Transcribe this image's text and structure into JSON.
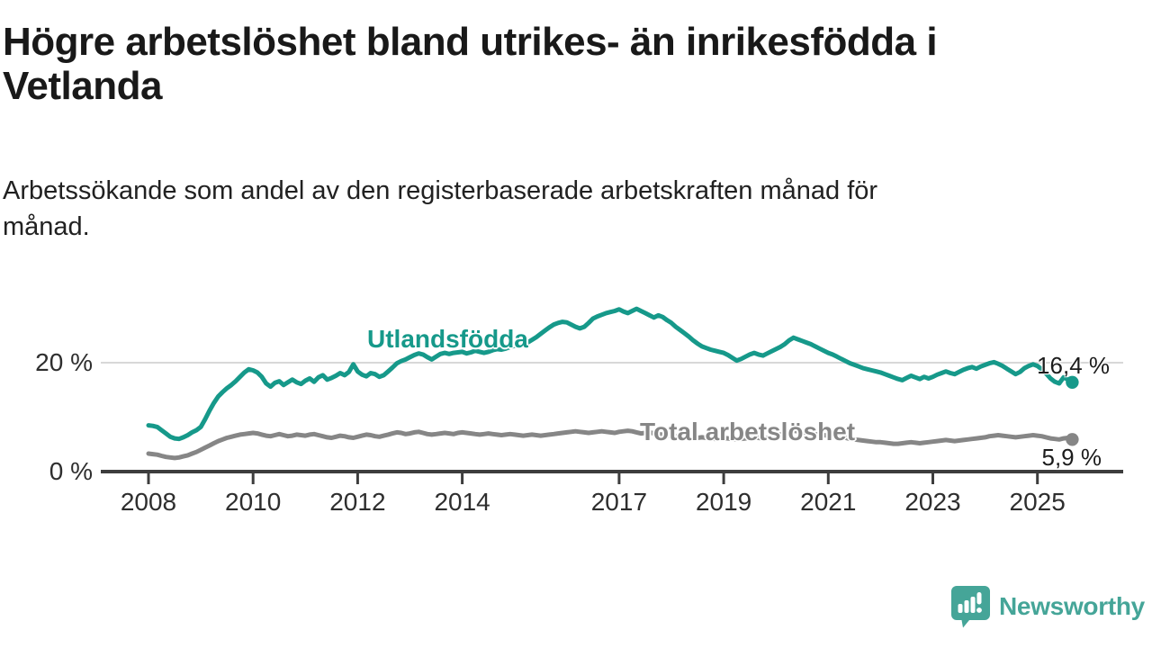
{
  "header": {
    "title_lines": [
      "Högre arbetslöshet bland utrikes- än inrikesfödda i",
      "Vetlanda"
    ],
    "subtitle_lines": [
      "Arbetssökande som andel av den registerbaserade arbetskraften månad för",
      "månad."
    ]
  },
  "chart_data": {
    "type": "line",
    "title": "Högre arbetslöshet bland utrikes- än inrikesfödda i Vetlanda",
    "subtitle": "Arbetssökande som andel av den registerbaserade arbetskraften månad för månad.",
    "x_unit": "month",
    "x_start": "2008-01",
    "x_end": "2025-09",
    "x_tick_years": [
      2008,
      2010,
      2012,
      2014,
      2017,
      2019,
      2021,
      2023,
      2025
    ],
    "x_tick_labels": [
      "2008",
      "2010",
      "2012",
      "2014",
      "2017",
      "2019",
      "2021",
      "2023",
      "2025"
    ],
    "y_axis": {
      "unit": "%",
      "min": 0,
      "max": 32,
      "grid": "horizontal-only",
      "ticks": [
        {
          "value": 0,
          "label": "0 %"
        },
        {
          "value": 20,
          "label": "20 %"
        }
      ]
    },
    "axis_color": "#3d3d3d",
    "grid_color": "#d8d8d8",
    "series": [
      {
        "name": "Utlandsfödda",
        "color": "#16998a",
        "end_value": 16.4,
        "end_label": "16,4 %",
        "values": [
          8.5,
          8.4,
          8.2,
          7.6,
          7.0,
          6.4,
          6.1,
          6.0,
          6.3,
          6.7,
          7.2,
          7.6,
          8.2,
          9.6,
          11.2,
          12.6,
          13.8,
          14.6,
          15.3,
          15.9,
          16.6,
          17.4,
          18.2,
          18.8,
          18.6,
          18.2,
          17.4,
          16.2,
          15.6,
          16.3,
          16.6,
          15.9,
          16.4,
          16.9,
          16.4,
          16.1,
          16.7,
          17.1,
          16.5,
          17.3,
          17.7,
          16.9,
          17.2,
          17.6,
          18.1,
          17.7,
          18.3,
          19.7,
          18.4,
          17.8,
          17.5,
          18.1,
          17.9,
          17.4,
          17.7,
          18.4,
          19.1,
          19.9,
          20.3,
          20.6,
          21.0,
          21.4,
          21.7,
          21.5,
          21.0,
          20.6,
          21.1,
          21.6,
          21.8,
          21.6,
          21.8,
          21.9,
          22.0,
          21.7,
          21.9,
          22.2,
          22.0,
          21.8,
          22.0,
          22.3,
          22.5,
          22.4,
          22.6,
          22.9,
          23.1,
          23.4,
          23.2,
          23.7,
          24.2,
          24.7,
          25.3,
          25.9,
          26.5,
          27.0,
          27.3,
          27.5,
          27.4,
          27.0,
          26.6,
          26.3,
          26.6,
          27.3,
          28.1,
          28.5,
          28.8,
          29.1,
          29.3,
          29.5,
          29.8,
          29.4,
          29.1,
          29.5,
          29.9,
          29.5,
          29.1,
          28.7,
          28.3,
          28.7,
          28.4,
          27.8,
          27.3,
          26.6,
          26.0,
          25.4,
          24.8,
          24.1,
          23.5,
          23.0,
          22.7,
          22.4,
          22.2,
          22.0,
          21.8,
          21.4,
          20.9,
          20.4,
          20.7,
          21.1,
          21.5,
          21.8,
          21.5,
          21.3,
          21.7,
          22.1,
          22.5,
          22.9,
          23.4,
          24.1,
          24.6,
          24.3,
          24.0,
          23.7,
          23.4,
          23.0,
          22.6,
          22.2,
          21.8,
          21.5,
          21.1,
          20.7,
          20.3,
          19.9,
          19.6,
          19.3,
          19.0,
          18.8,
          18.6,
          18.4,
          18.2,
          17.9,
          17.6,
          17.3,
          17.0,
          16.8,
          17.2,
          17.6,
          17.3,
          17.0,
          17.4,
          17.1,
          17.4,
          17.8,
          18.1,
          18.4,
          18.1,
          17.9,
          18.3,
          18.7,
          19.0,
          19.2,
          18.9,
          19.3,
          19.6,
          19.9,
          20.1,
          19.8,
          19.4,
          18.9,
          18.4,
          17.9,
          18.3,
          19.0,
          19.4,
          19.7,
          19.4,
          18.8,
          18.0,
          17.1,
          16.5,
          16.2,
          17.3,
          16.9,
          16.4
        ]
      },
      {
        "name": "Total arbetslöshet",
        "color": "#868686",
        "end_value": 5.9,
        "end_label": "5,9 %",
        "values": [
          3.3,
          3.2,
          3.1,
          2.9,
          2.7,
          2.6,
          2.5,
          2.6,
          2.8,
          3.0,
          3.3,
          3.6,
          4.0,
          4.4,
          4.8,
          5.2,
          5.6,
          5.9,
          6.2,
          6.4,
          6.6,
          6.8,
          6.9,
          7.0,
          7.1,
          7.0,
          6.8,
          6.6,
          6.5,
          6.7,
          6.9,
          6.7,
          6.5,
          6.6,
          6.8,
          6.7,
          6.6,
          6.8,
          6.9,
          6.7,
          6.5,
          6.3,
          6.2,
          6.4,
          6.6,
          6.5,
          6.3,
          6.2,
          6.4,
          6.6,
          6.8,
          6.7,
          6.5,
          6.4,
          6.6,
          6.8,
          7.0,
          7.2,
          7.1,
          6.9,
          7.0,
          7.2,
          7.3,
          7.1,
          6.9,
          6.8,
          6.9,
          7.0,
          7.1,
          7.0,
          6.9,
          7.1,
          7.2,
          7.1,
          7.0,
          6.9,
          6.8,
          6.9,
          7.0,
          6.9,
          6.8,
          6.7,
          6.8,
          6.9,
          6.8,
          6.7,
          6.6,
          6.7,
          6.8,
          6.7,
          6.6,
          6.7,
          6.8,
          6.9,
          7.0,
          7.1,
          7.2,
          7.3,
          7.4,
          7.3,
          7.2,
          7.1,
          7.2,
          7.3,
          7.4,
          7.3,
          7.2,
          7.1,
          7.3,
          7.4,
          7.5,
          7.4,
          7.2,
          7.0,
          7.1,
          7.2,
          7.0,
          6.9,
          6.8,
          6.7,
          6.6,
          6.5,
          6.4,
          6.3,
          6.2,
          6.1,
          6.2,
          6.3,
          6.2,
          6.1,
          6.0,
          6.1,
          6.2,
          6.1,
          6.0,
          5.9,
          6.0,
          6.1,
          6.2,
          6.3,
          6.2,
          6.1,
          6.2,
          6.3,
          6.5,
          6.8,
          7.1,
          7.4,
          7.5,
          7.4,
          7.2,
          7.1,
          7.0,
          6.9,
          6.8,
          6.7,
          6.6,
          6.5,
          6.4,
          6.3,
          6.2,
          6.0,
          5.9,
          5.8,
          5.7,
          5.6,
          5.5,
          5.4,
          5.4,
          5.3,
          5.2,
          5.1,
          5.1,
          5.2,
          5.3,
          5.4,
          5.3,
          5.2,
          5.3,
          5.4,
          5.5,
          5.6,
          5.7,
          5.8,
          5.7,
          5.6,
          5.7,
          5.8,
          5.9,
          6.0,
          6.1,
          6.2,
          6.3,
          6.5,
          6.6,
          6.7,
          6.6,
          6.5,
          6.4,
          6.3,
          6.4,
          6.5,
          6.6,
          6.7,
          6.6,
          6.5,
          6.3,
          6.1,
          6.0,
          5.9,
          6.1,
          6.2,
          5.9
        ]
      }
    ],
    "legend_position": "inline-labels"
  },
  "branding": {
    "logo_text": "Newsworthy",
    "logo_color": "#45a598"
  }
}
